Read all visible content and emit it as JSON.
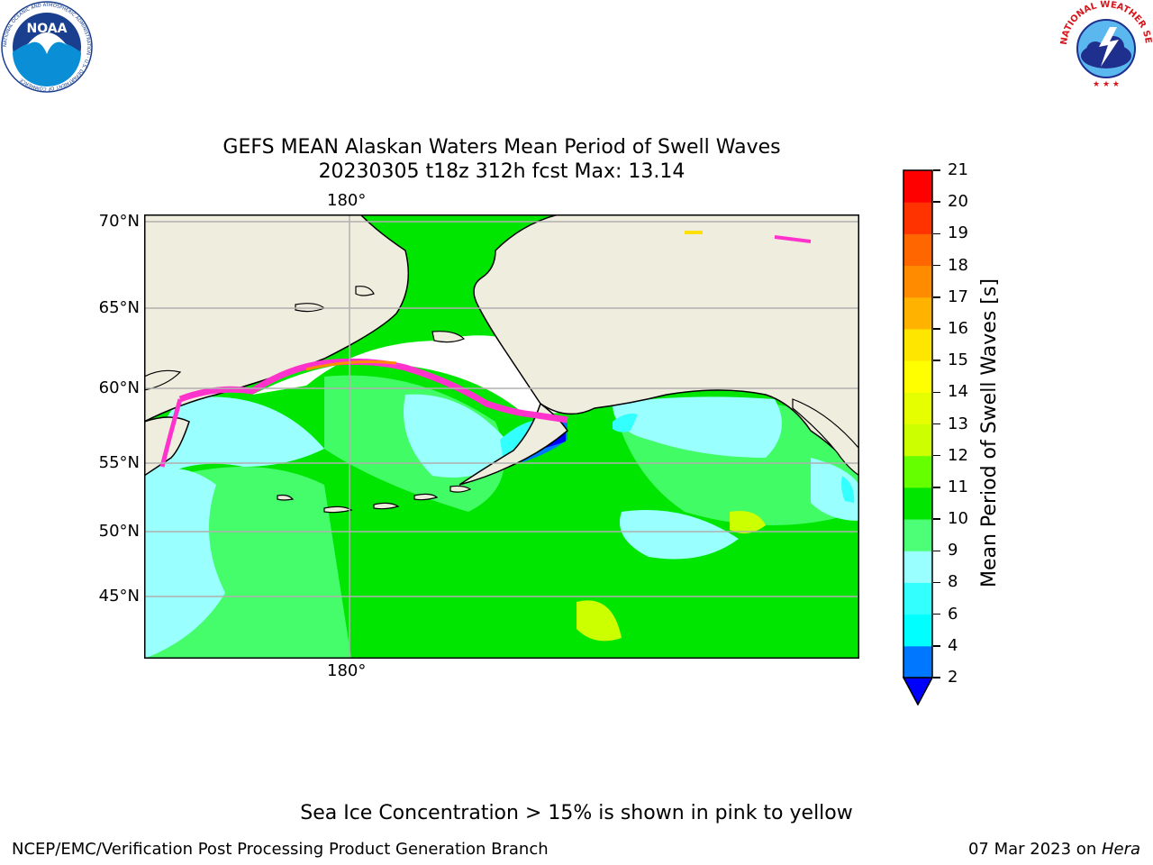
{
  "header": {
    "title_line1": "GEFS MEAN Alaskan Waters Mean Period of Swell Waves",
    "title_line2": "20230305 t18z 312h fcst   Max: 13.14"
  },
  "map": {
    "lon_labels": [
      "180°",
      "180°"
    ],
    "lat_labels": [
      "70°N",
      "65°N",
      "60°N",
      "55°N",
      "50°N",
      "45°N"
    ],
    "land_color": "#efedde",
    "ice_colors": [
      "#ff33cc",
      "#ff8c00",
      "#ffe000"
    ]
  },
  "colorbar": {
    "title": "Mean Period of Swell Waves [s]",
    "ticks": [
      "21",
      "20",
      "19",
      "18",
      "17",
      "16",
      "15",
      "14",
      "13",
      "12",
      "11",
      "10",
      "9",
      "8",
      "6",
      "4",
      "2"
    ],
    "colors": [
      "#0000ff",
      "#0077ff",
      "#00ffff",
      "#33ffff",
      "#99ffff",
      "#4dff77",
      "#00e600",
      "#66ff00",
      "#ccff00",
      "#e6ff00",
      "#ffff00",
      "#ffe600",
      "#ffb300",
      "#ff8c00",
      "#ff6600",
      "#ff3300",
      "#ff0000"
    ]
  },
  "logos": {
    "noaa_text": "NOAA",
    "noaa_ring": "NATIONAL OCEANIC AND ATMOSPHERIC ADMINISTRATION · U.S. DEPARTMENT OF COMMERCE",
    "nws_ring": "NATIONAL WEATHER SERVICE"
  },
  "note": "Sea Ice Concentration > 15% is shown in pink to yellow",
  "footer": {
    "left": "NCEP/EMC/Verification Post Processing Product Generation Branch",
    "date": "07 Mar 2023 on ",
    "machine": "Hera"
  }
}
